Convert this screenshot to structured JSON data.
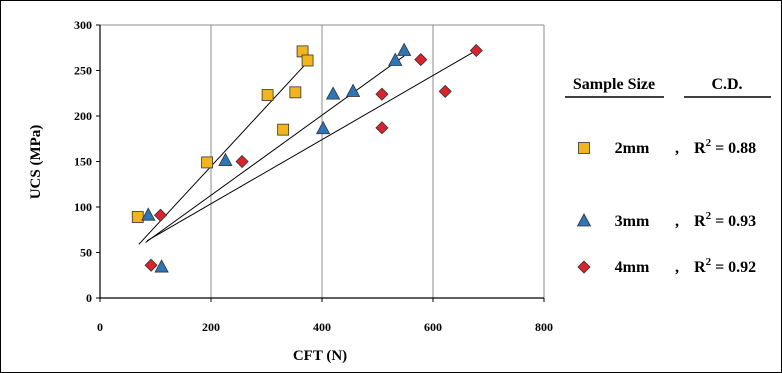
{
  "chart_data": {
    "type": "scatter",
    "xlabel": "CFT (N)",
    "ylabel": "UCS (MPa)",
    "xlim": [
      0,
      800
    ],
    "ylim": [
      0,
      300
    ],
    "xticks": [
      0,
      200,
      400,
      600,
      800
    ],
    "yticks": [
      0,
      50,
      100,
      150,
      200,
      250,
      300
    ],
    "grid": "vertical",
    "legend_position": "right",
    "legend_headers": {
      "sample_size": "Sample Size",
      "cd": "C.D."
    },
    "series": [
      {
        "name": "2mm",
        "marker": "square",
        "color": "#F2B51E",
        "r2_label": "R",
        "r2_sup": "2",
        "r2_value": " = 0.88",
        "points": [
          [
            68,
            89
          ],
          [
            193,
            149
          ],
          [
            302,
            223
          ],
          [
            330,
            185
          ],
          [
            352,
            226
          ],
          [
            365,
            271
          ],
          [
            374,
            261
          ]
        ],
        "trendline": [
          [
            70,
            59
          ],
          [
            372,
            258
          ]
        ]
      },
      {
        "name": "3mm",
        "marker": "triangle",
        "color": "#2E75B6",
        "r2_label": "R",
        "r2_sup": "2",
        "r2_value": " = 0.93",
        "points": [
          [
            87,
            91
          ],
          [
            111,
            34
          ],
          [
            226,
            151
          ],
          [
            402,
            186
          ],
          [
            420,
            224
          ],
          [
            456,
            227
          ],
          [
            532,
            261
          ],
          [
            548,
            272
          ]
        ],
        "trendline": [
          [
            82,
            61
          ],
          [
            548,
            266
          ]
        ]
      },
      {
        "name": "4mm",
        "marker": "diamond",
        "color": "#D9232D",
        "r2_label": "R",
        "r2_sup": "2",
        "r2_value": " = 0.92",
        "points": [
          [
            92,
            36
          ],
          [
            109,
            91
          ],
          [
            256,
            150
          ],
          [
            508,
            224
          ],
          [
            508,
            187
          ],
          [
            578,
            262
          ],
          [
            622,
            227
          ],
          [
            678,
            272
          ]
        ],
        "trendline": [
          [
            85,
            63
          ],
          [
            678,
            272
          ]
        ]
      }
    ],
    "legend_separator": ","
  }
}
